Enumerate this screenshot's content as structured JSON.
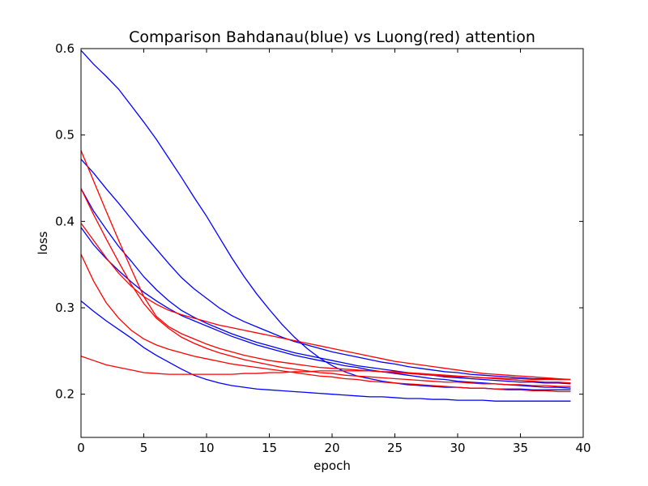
{
  "chart_data": {
    "type": "line",
    "title": "Comparison Bahdanau(blue) vs Luong(red) attention",
    "xlabel": "epoch",
    "ylabel": "loss",
    "xlim": [
      0,
      40
    ],
    "ylim": [
      0.15,
      0.6
    ],
    "xticks": [
      0,
      5,
      10,
      15,
      20,
      25,
      30,
      35,
      40
    ],
    "yticks": [
      0.2,
      0.3,
      0.4,
      0.5,
      0.6
    ],
    "grid": false,
    "legend": "none",
    "colors": {
      "blue": "#0000ff",
      "red": "#ff0000"
    },
    "x": [
      0,
      1,
      2,
      3,
      4,
      5,
      6,
      7,
      8,
      9,
      10,
      11,
      12,
      13,
      14,
      15,
      16,
      17,
      18,
      19,
      20,
      21,
      22,
      23,
      24,
      25,
      26,
      27,
      28,
      29,
      30,
      31,
      32,
      33,
      34,
      35,
      36,
      37,
      38,
      39
    ],
    "series": [
      {
        "color": "#0000ff",
        "values": [
          0.598,
          0.582,
          0.568,
          0.553,
          0.534,
          0.515,
          0.495,
          0.473,
          0.451,
          0.428,
          0.406,
          0.382,
          0.358,
          0.336,
          0.316,
          0.298,
          0.281,
          0.266,
          0.253,
          0.242,
          0.233,
          0.226,
          0.221,
          0.218,
          0.215,
          0.213,
          0.211,
          0.21,
          0.209,
          0.208,
          0.208,
          0.207,
          0.207,
          0.206,
          0.206,
          0.206,
          0.205,
          0.205,
          0.205,
          0.205
        ]
      },
      {
        "color": "#0000ff",
        "values": [
          0.472,
          0.456,
          0.438,
          0.421,
          0.403,
          0.385,
          0.368,
          0.351,
          0.335,
          0.322,
          0.311,
          0.3,
          0.291,
          0.284,
          0.278,
          0.272,
          0.266,
          0.261,
          0.257,
          0.253,
          0.249,
          0.246,
          0.243,
          0.24,
          0.237,
          0.235,
          0.232,
          0.23,
          0.228,
          0.226,
          0.225,
          0.223,
          0.222,
          0.221,
          0.22,
          0.219,
          0.218,
          0.218,
          0.217,
          0.217
        ]
      },
      {
        "color": "#0000ff",
        "values": [
          0.438,
          0.412,
          0.391,
          0.371,
          0.354,
          0.336,
          0.321,
          0.308,
          0.297,
          0.289,
          0.282,
          0.276,
          0.27,
          0.265,
          0.26,
          0.256,
          0.252,
          0.248,
          0.245,
          0.242,
          0.239,
          0.236,
          0.233,
          0.231,
          0.229,
          0.227,
          0.225,
          0.223,
          0.222,
          0.22,
          0.219,
          0.218,
          0.217,
          0.216,
          0.215,
          0.214,
          0.214,
          0.213,
          0.213,
          0.212
        ]
      },
      {
        "color": "#0000ff",
        "values": [
          0.393,
          0.373,
          0.357,
          0.343,
          0.33,
          0.318,
          0.308,
          0.299,
          0.291,
          0.285,
          0.279,
          0.273,
          0.267,
          0.262,
          0.257,
          0.253,
          0.249,
          0.245,
          0.242,
          0.239,
          0.236,
          0.233,
          0.231,
          0.228,
          0.226,
          0.224,
          0.222,
          0.22,
          0.218,
          0.217,
          0.215,
          0.214,
          0.213,
          0.212,
          0.211,
          0.21,
          0.209,
          0.208,
          0.208,
          0.207
        ]
      },
      {
        "color": "#0000ff",
        "values": [
          0.308,
          0.296,
          0.285,
          0.275,
          0.265,
          0.254,
          0.245,
          0.237,
          0.229,
          0.222,
          0.217,
          0.213,
          0.21,
          0.208,
          0.206,
          0.205,
          0.204,
          0.203,
          0.202,
          0.201,
          0.2,
          0.199,
          0.198,
          0.197,
          0.197,
          0.196,
          0.195,
          0.195,
          0.194,
          0.194,
          0.193,
          0.193,
          0.193,
          0.192,
          0.192,
          0.192,
          0.192,
          0.192,
          0.192,
          0.192
        ]
      },
      {
        "color": "#ff0000",
        "values": [
          0.482,
          0.447,
          0.412,
          0.378,
          0.345,
          0.313,
          0.29,
          0.278,
          0.27,
          0.264,
          0.258,
          0.253,
          0.249,
          0.245,
          0.242,
          0.239,
          0.237,
          0.235,
          0.233,
          0.231,
          0.23,
          0.229,
          0.228,
          0.227,
          0.226,
          0.225,
          0.224,
          0.223,
          0.222,
          0.221,
          0.22,
          0.22,
          0.219,
          0.219,
          0.218,
          0.218,
          0.217,
          0.217,
          0.217,
          0.217
        ]
      },
      {
        "color": "#ff0000",
        "values": [
          0.438,
          0.408,
          0.38,
          0.353,
          0.327,
          0.305,
          0.288,
          0.276,
          0.266,
          0.259,
          0.253,
          0.248,
          0.244,
          0.24,
          0.237,
          0.234,
          0.231,
          0.229,
          0.227,
          0.225,
          0.224,
          0.222,
          0.221,
          0.22,
          0.219,
          0.218,
          0.217,
          0.216,
          0.215,
          0.214,
          0.214,
          0.213,
          0.212,
          0.212,
          0.211,
          0.211,
          0.21,
          0.21,
          0.209,
          0.209
        ]
      },
      {
        "color": "#ff0000",
        "values": [
          0.398,
          0.378,
          0.358,
          0.34,
          0.325,
          0.313,
          0.304,
          0.297,
          0.292,
          0.288,
          0.284,
          0.28,
          0.277,
          0.274,
          0.271,
          0.268,
          0.265,
          0.262,
          0.259,
          0.256,
          0.253,
          0.25,
          0.247,
          0.244,
          0.241,
          0.238,
          0.236,
          0.234,
          0.232,
          0.23,
          0.228,
          0.226,
          0.224,
          0.223,
          0.222,
          0.221,
          0.22,
          0.219,
          0.218,
          0.217
        ]
      },
      {
        "color": "#ff0000",
        "values": [
          0.362,
          0.331,
          0.306,
          0.288,
          0.274,
          0.264,
          0.257,
          0.252,
          0.248,
          0.244,
          0.241,
          0.238,
          0.235,
          0.233,
          0.231,
          0.229,
          0.227,
          0.225,
          0.223,
          0.221,
          0.22,
          0.218,
          0.217,
          0.215,
          0.214,
          0.213,
          0.212,
          0.211,
          0.21,
          0.209,
          0.208,
          0.207,
          0.207,
          0.206,
          0.205,
          0.205,
          0.204,
          0.204,
          0.203,
          0.203
        ]
      },
      {
        "color": "#ff0000",
        "values": [
          0.244,
          0.239,
          0.234,
          0.231,
          0.228,
          0.225,
          0.224,
          0.223,
          0.223,
          0.223,
          0.223,
          0.223,
          0.223,
          0.224,
          0.224,
          0.225,
          0.225,
          0.226,
          0.226,
          0.227,
          0.227,
          0.227,
          0.227,
          0.227,
          0.226,
          0.226,
          0.225,
          0.224,
          0.223,
          0.222,
          0.221,
          0.22,
          0.219,
          0.218,
          0.217,
          0.216,
          0.215,
          0.214,
          0.214,
          0.213
        ]
      }
    ]
  }
}
